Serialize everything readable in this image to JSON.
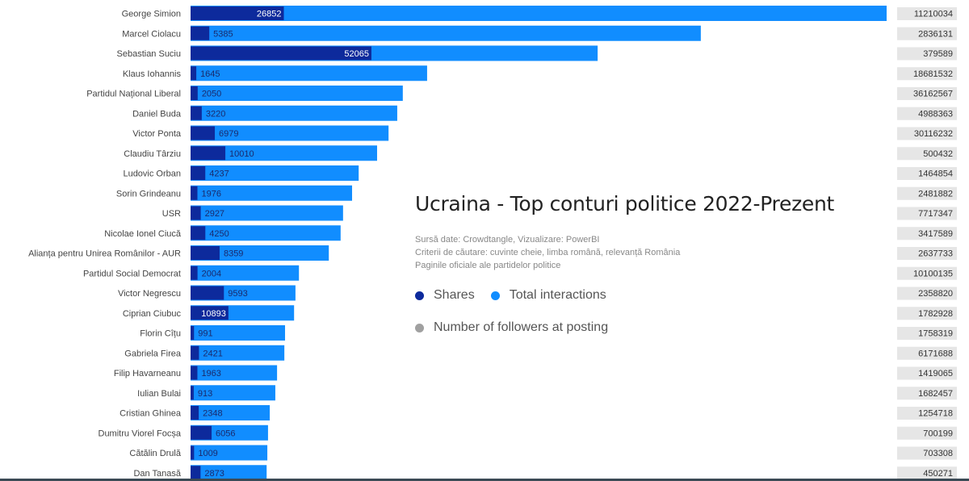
{
  "chart_data": {
    "type": "bar",
    "orientation": "horizontal",
    "title": "Ucraina - Top conturi politice 2022-Prezent",
    "subtitle_lines": [
      "Sursă date: Crowdtangle, Vizualizare: PowerBI",
      "Criterii de căutare: cuvinte cheie, limba română, relevanță România",
      "Paginile oficiale ale partidelor politice"
    ],
    "legend": [
      {
        "name": "Shares",
        "color": "#0d2a9c"
      },
      {
        "name": "Total interactions",
        "color": "#118dff"
      },
      {
        "name": "Number of followers at posting",
        "color": "#a0a0a0"
      }
    ],
    "categories": [
      "George Simion",
      "Marcel Ciolacu",
      "Sebastian Suciu",
      "Klaus Iohannis",
      "Partidul Național Liberal",
      "Daniel Buda",
      "Victor Ponta",
      "Claudiu Târziu",
      "Ludovic Orban",
      "Sorin Grindeanu",
      "USR",
      "Nicolae Ionel Ciucă",
      "Alianța pentru Unirea Românilor - AUR",
      "Partidul Social Democrat",
      "Victor Negrescu",
      "Ciprian Ciubuc",
      "Florin Cîțu",
      "Gabriela Firea",
      "Filip Havarneanu",
      "Iulian Bulai",
      "Cristian Ghinea",
      "Dumitru Viorel Focșa",
      "Cătălin Drulă",
      "Dan Tanasă"
    ],
    "series": [
      {
        "name": "Total interactions",
        "values": [
          200400,
          146900,
          117200,
          68100,
          61100,
          59500,
          57000,
          53700,
          48400,
          46500,
          43900,
          43200,
          39800,
          31200,
          30200,
          29800,
          27200,
          27000,
          24900,
          24400,
          22800,
          22300,
          22100,
          21900
        ]
      },
      {
        "name": "Shares",
        "values": [
          26852,
          5385,
          52065,
          1645,
          2050,
          3220,
          6979,
          10010,
          4237,
          1976,
          2927,
          4250,
          8359,
          2004,
          9593,
          10893,
          991,
          2421,
          1963,
          913,
          2348,
          6056,
          1009,
          2873
        ]
      },
      {
        "name": "Number of followers at posting",
        "values": [
          11210034,
          2836131,
          379589,
          18681532,
          36162567,
          4988363,
          30116232,
          500432,
          1464854,
          2481882,
          7717347,
          3417589,
          2637733,
          10100135,
          2358820,
          1782928,
          1758319,
          6171688,
          1419065,
          1682457,
          1254718,
          700199,
          703308,
          450271
        ]
      }
    ],
    "xlim": [
      0,
      200400
    ],
    "grid": false
  }
}
